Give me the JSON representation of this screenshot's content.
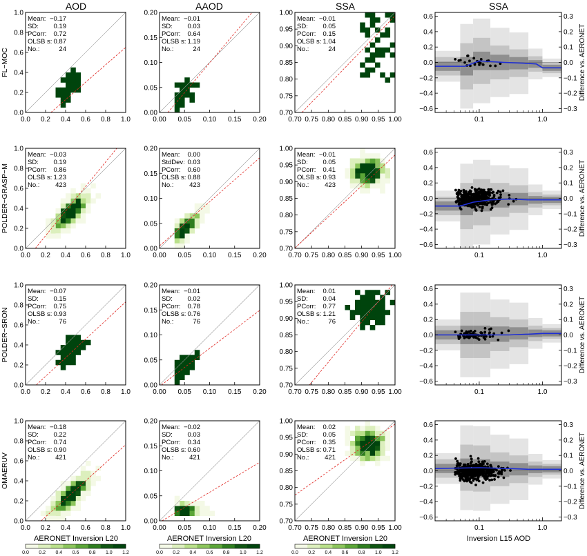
{
  "figure": {
    "column_titles": [
      "AOD",
      "AAOD",
      "SSA",
      "SSA"
    ],
    "row_labels": [
      "FL−MOC",
      "POLDER−GRASP−M",
      "POLDER−SRON",
      "OMAERUV"
    ],
    "xlabel_scatter": "AERONET Inversion L20",
    "xlabel_diff": "Inversion L15 AOD",
    "ylabel_right": "Difference vs. AERONET",
    "colorbar_ticks": [
      "0.0",
      "0.2",
      "0.4",
      "0.6",
      "0.8",
      "1.0",
      "1.2"
    ]
  },
  "chart_data": [
    {
      "row": "FL−MOC",
      "column": "AOD",
      "type": "heatmap",
      "xlim": [
        0,
        1
      ],
      "ylim": [
        0,
        1
      ],
      "x_ticks": [
        "0.0",
        "0.2",
        "0.4",
        "0.6",
        "0.8",
        "1.0"
      ],
      "y_ticks": [
        "0.0",
        "0.2",
        "0.4",
        "0.6",
        "0.8",
        "1.0"
      ],
      "stats": {
        "labels": [
          "Mean:",
          "SD:",
          "PCorr:",
          "OLSB s:",
          "No.:"
        ],
        "values": [
          "−0.17",
          "0.19",
          "0.72",
          "0.87",
          "24"
        ]
      },
      "regression": {
        "slope": 0.87,
        "intercept": -0.22
      }
    },
    {
      "row": "FL−MOC",
      "column": "AAOD",
      "type": "heatmap",
      "xlim": [
        0,
        0.2
      ],
      "ylim": [
        0,
        0.2
      ],
      "x_ticks": [
        "0.00",
        "0.05",
        "0.10",
        "0.15",
        "0.20"
      ],
      "y_ticks": [
        "0.00",
        "0.05",
        "0.10",
        "0.15",
        "0.20"
      ],
      "stats": {
        "labels": [
          "Mean:",
          "SD:",
          "PCorr:",
          "OLSB s:",
          "No.:"
        ],
        "values": [
          "−0.01",
          "0.03",
          "0.64",
          "1.19",
          "24"
        ]
      },
      "regression": {
        "slope": 1.19,
        "intercept": -0.02
      }
    },
    {
      "row": "FL−MOC",
      "column": "SSA",
      "type": "heatmap",
      "xlim": [
        0.7,
        1
      ],
      "ylim": [
        0.7,
        1
      ],
      "x_ticks": [
        "0.70",
        "0.75",
        "0.80",
        "0.85",
        "0.90",
        "0.95",
        "1.00"
      ],
      "y_ticks": [
        "0.70",
        "0.75",
        "0.80",
        "0.85",
        "0.90",
        "0.95",
        "1.00"
      ],
      "stats": {
        "labels": [
          "Mean:",
          "SD:",
          "PCorr:",
          "OLSB s:",
          "No.:"
        ],
        "values": [
          "−0.01",
          "0.05",
          "0.15",
          "1.04",
          "24"
        ]
      },
      "regression": {
        "slope": 1.04,
        "intercept": -0.05
      }
    },
    {
      "row": "FL−MOC",
      "column": "SSA",
      "type": "scatter",
      "xlim": [
        0.02,
        2
      ],
      "x_scale": "log",
      "ylim": [
        -0.65,
        0.65
      ],
      "ylim_right": [
        -0.325,
        0.325
      ],
      "x_ticks": [
        "0.1",
        "1.0"
      ],
      "y_ticks": [
        "−0.6",
        "−0.4",
        "−0.2",
        "0.0",
        "0.2",
        "0.4",
        "0.6"
      ],
      "y_ticks_right": [
        "−0.3",
        "−0.2",
        "−0.1",
        "0.0",
        "0.1",
        "0.2",
        "0.3"
      ],
      "median_line": [
        [
          0.02,
          -0.05
        ],
        [
          0.06,
          -0.05
        ],
        [
          0.1,
          0.02
        ],
        [
          0.25,
          0.0
        ],
        [
          0.5,
          -0.01
        ],
        [
          0.8,
          -0.02
        ],
        [
          1.0,
          -0.07
        ],
        [
          2.0,
          -0.07
        ]
      ],
      "n_points": 24
    },
    {
      "row": "POLDER−GRASP−M",
      "column": "AOD",
      "type": "heatmap",
      "xlim": [
        0,
        1
      ],
      "ylim": [
        0,
        1
      ],
      "x_ticks": [
        "0.0",
        "0.2",
        "0.4",
        "0.6",
        "0.8",
        "1.0"
      ],
      "y_ticks": [
        "0.0",
        "0.2",
        "0.4",
        "0.6",
        "0.8",
        "1.0"
      ],
      "stats": {
        "labels": [
          "Mean:",
          "SD:",
          "PCorr:",
          "OLSB s:",
          "No.:"
        ],
        "values": [
          "−0.03",
          "0.19",
          "0.86",
          "1.23",
          "423"
        ]
      },
      "regression": {
        "slope": 1.23,
        "intercept": -0.12
      }
    },
    {
      "row": "POLDER−GRASP−M",
      "column": "AAOD",
      "type": "heatmap",
      "xlim": [
        0,
        0.2
      ],
      "ylim": [
        0,
        0.2
      ],
      "x_ticks": [
        "0.00",
        "0.05",
        "0.10",
        "0.15",
        "0.20"
      ],
      "y_ticks": [
        "0.00",
        "0.05",
        "0.10",
        "0.15",
        "0.20"
      ],
      "stats": {
        "labels": [
          "Mean:",
          "StdDev:",
          "PCorr:",
          "OLSB s:",
          "No.:"
        ],
        "values": [
          "0.00",
          "0.03",
          "0.60",
          "0.88",
          "423"
        ]
      },
      "regression": {
        "slope": 0.88,
        "intercept": 0.005
      }
    },
    {
      "row": "POLDER−GRASP−M",
      "column": "SSA",
      "type": "heatmap",
      "xlim": [
        0.7,
        1
      ],
      "ylim": [
        0.7,
        1
      ],
      "x_ticks": [
        "0.70",
        "0.75",
        "0.80",
        "0.85",
        "0.90",
        "0.95",
        "1.00"
      ],
      "y_ticks": [
        "0.70",
        "0.75",
        "0.80",
        "0.85",
        "0.90",
        "0.95",
        "1.00"
      ],
      "stats": {
        "labels": [
          "Mean:",
          "SD:",
          "PCorr:",
          "OLSB s:",
          "No.:"
        ],
        "values": [
          "−0.01",
          "0.05",
          "0.41",
          "0.93",
          "423"
        ]
      },
      "regression": {
        "slope": 0.93,
        "intercept": 0.05
      }
    },
    {
      "row": "POLDER−GRASP−M",
      "column": "SSA",
      "type": "scatter",
      "xlim": [
        0.02,
        2
      ],
      "x_scale": "log",
      "ylim": [
        -0.65,
        0.65
      ],
      "ylim_right": [
        -0.325,
        0.325
      ],
      "x_ticks": [
        "0.1",
        "1.0"
      ],
      "y_ticks": [
        "−0.6",
        "−0.4",
        "−0.2",
        "0.0",
        "0.2",
        "0.4",
        "0.6"
      ],
      "y_ticks_right": [
        "−0.3",
        "−0.2",
        "−0.1",
        "0.0",
        "0.1",
        "0.2",
        "0.3"
      ],
      "median_line": [
        [
          0.02,
          -0.1
        ],
        [
          0.05,
          -0.1
        ],
        [
          0.08,
          -0.05
        ],
        [
          0.15,
          -0.02
        ],
        [
          0.3,
          -0.01
        ],
        [
          0.6,
          -0.02
        ],
        [
          1.0,
          -0.02
        ],
        [
          2.0,
          -0.02
        ]
      ],
      "n_points": 423
    },
    {
      "row": "POLDER−SRON",
      "column": "AOD",
      "type": "heatmap",
      "xlim": [
        0,
        1
      ],
      "ylim": [
        0,
        1
      ],
      "x_ticks": [
        "0.0",
        "0.2",
        "0.4",
        "0.6",
        "0.8",
        "1.0"
      ],
      "y_ticks": [
        "0.0",
        "0.2",
        "0.4",
        "0.6",
        "0.8",
        "1.0"
      ],
      "stats": {
        "labels": [
          "Mean:",
          "SD:",
          "PCorr:",
          "OLSB s:",
          "No.:"
        ],
        "values": [
          "−0.07",
          "0.15",
          "0.75",
          "0.93",
          "76"
        ]
      },
      "regression": {
        "slope": 0.93,
        "intercept": -0.1
      }
    },
    {
      "row": "POLDER−SRON",
      "column": "AAOD",
      "type": "heatmap",
      "xlim": [
        0,
        0.2
      ],
      "ylim": [
        0,
        0.2
      ],
      "x_ticks": [
        "0.00",
        "0.05",
        "0.10",
        "0.15",
        "0.20"
      ],
      "y_ticks": [
        "0.00",
        "0.05",
        "0.10",
        "0.15",
        "0.20"
      ],
      "stats": {
        "labels": [
          "Mean:",
          "SD:",
          "PCorr:",
          "OLSB s:",
          "No.:"
        ],
        "values": [
          "−0.01",
          "0.02",
          "0.78",
          "0.76",
          "76"
        ]
      },
      "regression": {
        "slope": 0.76,
        "intercept": -0.003
      }
    },
    {
      "row": "POLDER−SRON",
      "column": "SSA",
      "type": "heatmap",
      "xlim": [
        0.7,
        1
      ],
      "ylim": [
        0.7,
        1
      ],
      "x_ticks": [
        "0.70",
        "0.75",
        "0.80",
        "0.85",
        "0.90",
        "0.95",
        "1.00"
      ],
      "y_ticks": [
        "0.70",
        "0.75",
        "0.80",
        "0.85",
        "0.90",
        "0.95",
        "1.00"
      ],
      "stats": {
        "labels": [
          "Mean:",
          "SD:",
          "PCorr:",
          "OLSB s:",
          "No.:"
        ],
        "values": [
          "0.01",
          "0.04",
          "0.77",
          "1.21",
          "76"
        ]
      },
      "regression": {
        "slope": 1.21,
        "intercept": -0.2
      }
    },
    {
      "row": "POLDER−SRON",
      "column": "SSA",
      "type": "scatter",
      "xlim": [
        0.02,
        2
      ],
      "x_scale": "log",
      "ylim": [
        -0.65,
        0.65
      ],
      "ylim_right": [
        -0.325,
        0.325
      ],
      "x_ticks": [
        "0.1",
        "1.0"
      ],
      "y_ticks": [
        "−0.6",
        "−0.4",
        "−0.2",
        "0.0",
        "0.2",
        "0.4",
        "0.6"
      ],
      "y_ticks_right": [
        "−0.3",
        "−0.2",
        "−0.1",
        "0.0",
        "0.1",
        "0.2",
        "0.3"
      ],
      "median_line": [
        [
          0.02,
          0.0
        ],
        [
          0.1,
          0.0
        ],
        [
          0.3,
          0.0
        ],
        [
          0.6,
          0.01
        ],
        [
          1.0,
          0.02
        ],
        [
          2.0,
          0.02
        ]
      ],
      "n_points": 76
    },
    {
      "row": "OMAERUV",
      "column": "AOD",
      "type": "heatmap",
      "xlim": [
        0,
        1
      ],
      "ylim": [
        0,
        1
      ],
      "x_ticks": [
        "0.0",
        "0.2",
        "0.4",
        "0.6",
        "0.8",
        "1.0"
      ],
      "y_ticks": [
        "0.0",
        "0.2",
        "0.4",
        "0.6",
        "0.8",
        "1.0"
      ],
      "stats": {
        "labels": [
          "Mean:",
          "SD:",
          "PCorr:",
          "OLSB s:",
          "No.:"
        ],
        "values": [
          "−0.18",
          "0.22",
          "0.74",
          "0.90",
          "421"
        ]
      },
      "regression": {
        "slope": 0.9,
        "intercept": -0.14
      }
    },
    {
      "row": "OMAERUV",
      "column": "AAOD",
      "type": "heatmap",
      "xlim": [
        0,
        0.2
      ],
      "ylim": [
        0,
        0.2
      ],
      "x_ticks": [
        "0.00",
        "0.05",
        "0.10",
        "0.15",
        "0.20"
      ],
      "y_ticks": [
        "0.00",
        "0.05",
        "0.10",
        "0.15",
        "0.20"
      ],
      "stats": {
        "labels": [
          "Mean:",
          "SD:",
          "PCorr:",
          "OLSB s:",
          "No.:"
        ],
        "values": [
          "−0.02",
          "0.03",
          "0.34",
          "0.60",
          "421"
        ]
      },
      "regression": {
        "slope": 0.6,
        "intercept": -0.003
      }
    },
    {
      "row": "OMAERUV",
      "column": "SSA",
      "type": "heatmap",
      "xlim": [
        0.7,
        1
      ],
      "ylim": [
        0.7,
        1
      ],
      "x_ticks": [
        "0.70",
        "0.75",
        "0.80",
        "0.85",
        "0.90",
        "0.95",
        "1.00"
      ],
      "y_ticks": [
        "0.70",
        "0.75",
        "0.80",
        "0.85",
        "0.90",
        "0.95",
        "1.00"
      ],
      "stats": {
        "labels": [
          "Mean:",
          "SD:",
          "PCorr:",
          "OLSB s:",
          "No.:"
        ],
        "values": [
          "0.02",
          "0.05",
          "0.35",
          "0.71",
          "421"
        ]
      },
      "regression": {
        "slope": 0.71,
        "intercept": 0.28
      }
    },
    {
      "row": "OMAERUV",
      "column": "SSA",
      "type": "scatter",
      "xlim": [
        0.02,
        2
      ],
      "x_scale": "log",
      "ylim": [
        -0.65,
        0.65
      ],
      "ylim_right": [
        -0.325,
        0.325
      ],
      "x_ticks": [
        "0.1",
        "1.0"
      ],
      "y_ticks": [
        "−0.6",
        "−0.4",
        "−0.2",
        "0.0",
        "0.2",
        "0.4",
        "0.6"
      ],
      "y_ticks_right": [
        "−0.3",
        "−0.2",
        "−0.1",
        "0.0",
        "0.1",
        "0.2",
        "0.3"
      ],
      "median_line": [
        [
          0.02,
          0.03
        ],
        [
          0.1,
          0.04
        ],
        [
          0.3,
          0.03
        ],
        [
          0.6,
          0.02
        ],
        [
          1.0,
          0.02
        ],
        [
          2.0,
          0.02
        ]
      ],
      "n_points": 421
    }
  ],
  "colors": {
    "heat": [
      "#f4f9e6",
      "#dcefbd",
      "#b9e08a",
      "#8cc55c",
      "#5ba537",
      "#2e7d1e",
      "#0f5512",
      "#00440d"
    ],
    "ref_line": "#9a9a9a",
    "regression": "#e0241f",
    "median_line": "#1f2fd6",
    "points": "#000000",
    "bands": [
      "#e4e4e4",
      "#c4c4c4",
      "#8f8f8f"
    ]
  }
}
